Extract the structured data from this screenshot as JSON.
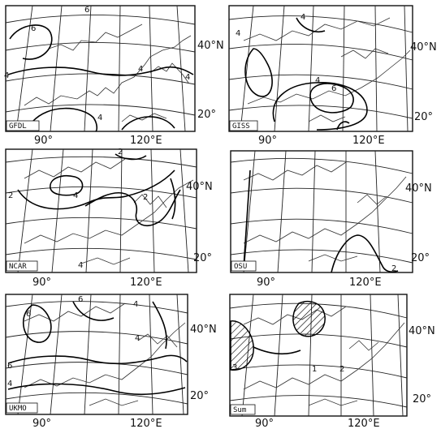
{
  "figure": {
    "panels": [
      {
        "model": "GFDL",
        "x_labels": [
          "90°",
          "120°E"
        ],
        "y_labels": [
          "40°N",
          "20°"
        ],
        "contour_labels": [
          "6",
          "6",
          "4",
          "4",
          "4",
          "4"
        ]
      },
      {
        "model": "GISS",
        "x_labels": [
          "90°",
          "120°E"
        ],
        "y_labels": [
          "40°N",
          "20°"
        ],
        "contour_labels": [
          "4",
          "4",
          "4",
          "6"
        ]
      },
      {
        "model": "NCAR",
        "x_labels": [
          "90°",
          "120°E"
        ],
        "y_labels": [
          "40°N",
          "20°"
        ],
        "contour_labels": [
          "2",
          "2",
          "4",
          "2",
          "4"
        ]
      },
      {
        "model": "OSU",
        "x_labels": [
          "90°",
          "120°E"
        ],
        "y_labels": [
          "40°N",
          "20°"
        ],
        "contour_labels": [
          "2"
        ]
      },
      {
        "model": "UKMO",
        "x_labels": [
          "90°",
          "120°E"
        ],
        "y_labels": [
          "40°N",
          "20°"
        ],
        "contour_labels": [
          "6",
          "6",
          "4",
          "6",
          "4",
          "4"
        ]
      },
      {
        "model": "Sum",
        "x_labels": [
          "90°",
          "120°E"
        ],
        "y_labels": [
          "40°N",
          "20°"
        ],
        "contour_labels": [
          "1",
          "2",
          "3"
        ]
      }
    ]
  }
}
